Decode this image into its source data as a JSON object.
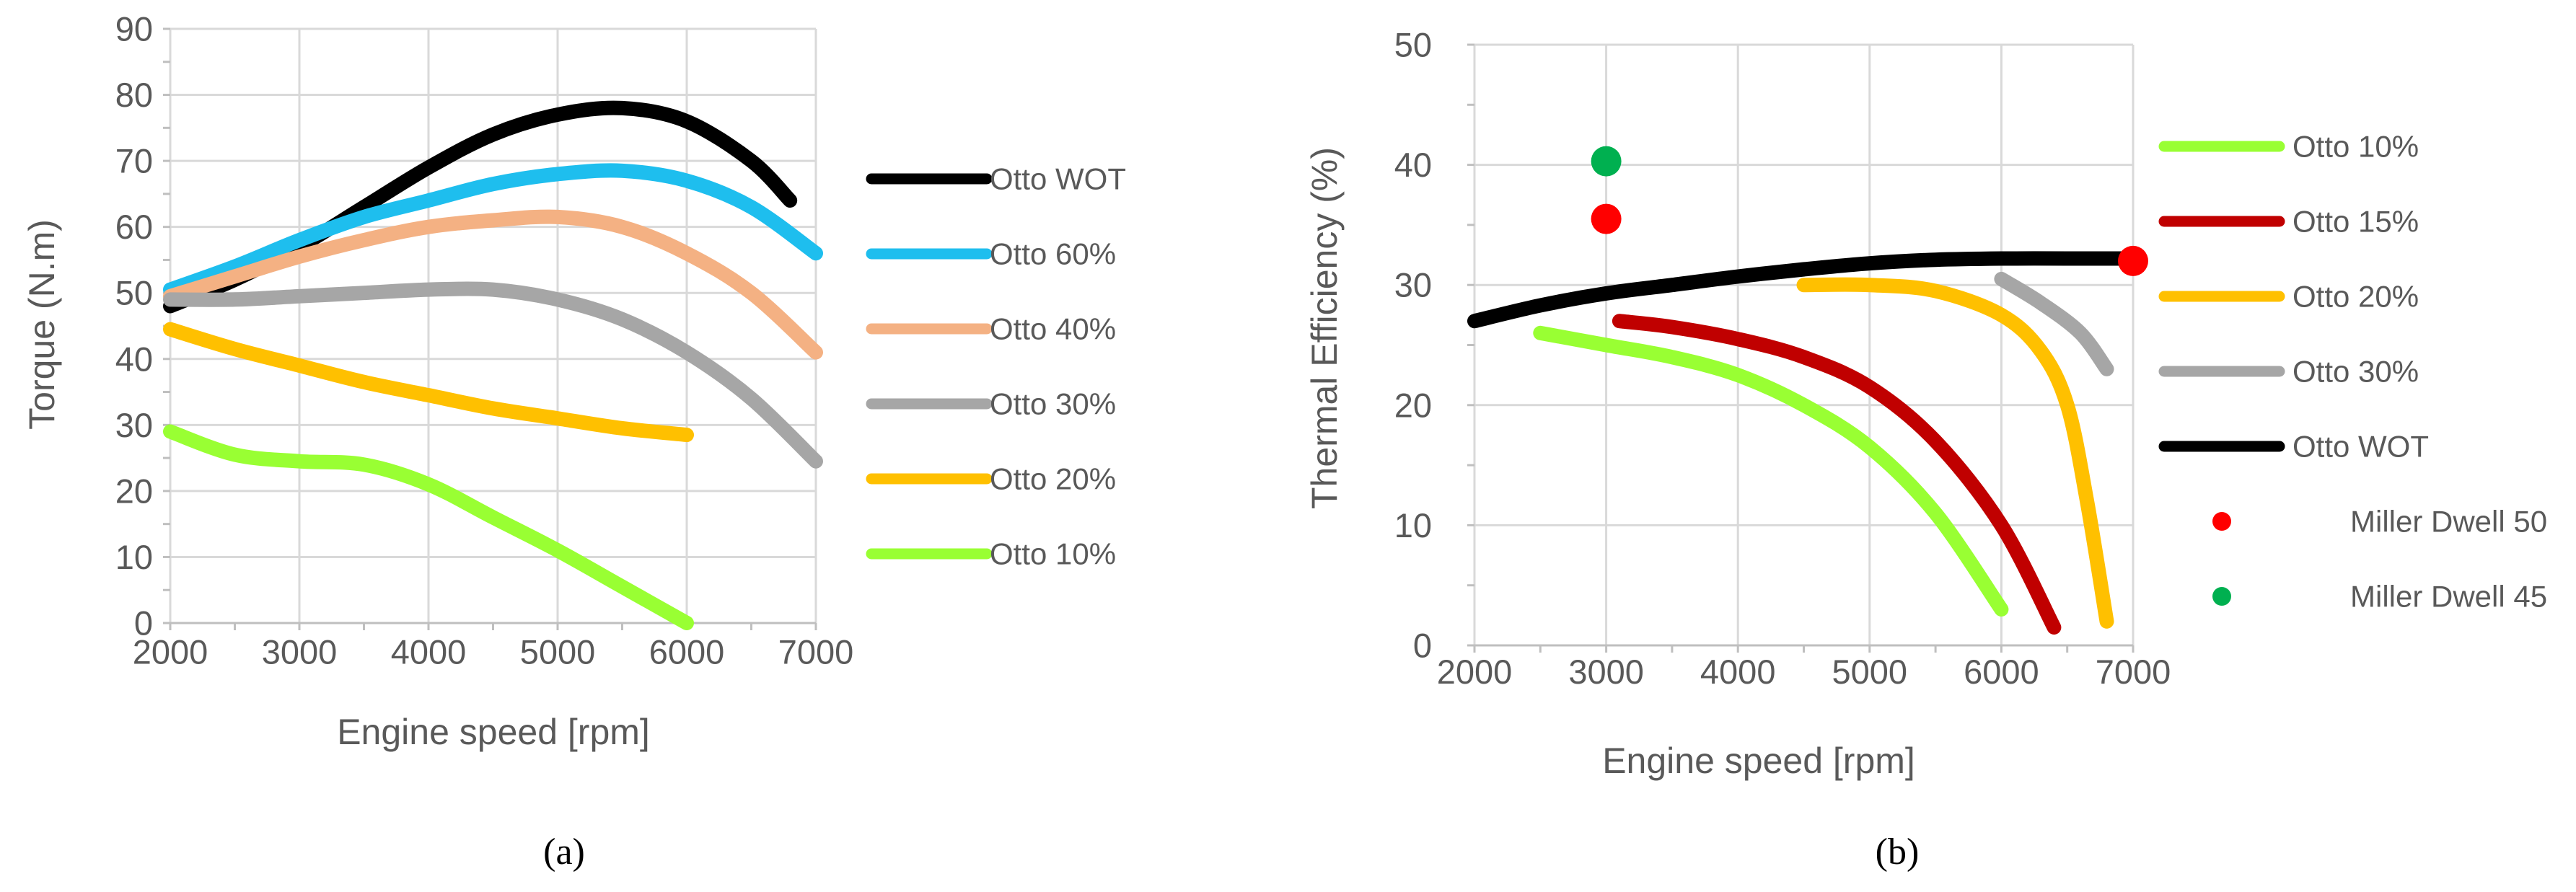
{
  "charts": [
    {
      "id": "a",
      "panel_label": "(a)",
      "xlabel": "Engine speed [rpm]",
      "ylabel": "Torque (N.m)",
      "xlim": [
        2000,
        7000
      ],
      "ylim": [
        0,
        90
      ],
      "xticks": [
        2000,
        3000,
        4000,
        5000,
        6000,
        7000
      ],
      "yticks": [
        0,
        10,
        20,
        30,
        40,
        50,
        60,
        70,
        80,
        90
      ]
    },
    {
      "id": "b",
      "panel_label": "(b)",
      "xlabel": "Engine speed [rpm]",
      "ylabel": "Thermal Efficiency (%)",
      "xlim": [
        2000,
        7000
      ],
      "ylim": [
        0,
        50
      ],
      "xticks": [
        2000,
        3000,
        4000,
        5000,
        6000,
        7000
      ],
      "yticks": [
        0,
        10,
        20,
        30,
        40,
        50
      ]
    }
  ],
  "chart_data": [
    {
      "type": "line",
      "title": "",
      "xlabel": "Engine speed [rpm]",
      "ylabel": "Torque (N.m)",
      "xlim": [
        2000,
        7000
      ],
      "ylim": [
        0,
        90
      ],
      "grid": true,
      "legend_position": "right",
      "series": [
        {
          "name": "Otto WOT",
          "color": "#000000",
          "x": [
            2000,
            2500,
            3000,
            3500,
            4000,
            4500,
            5000,
            5500,
            6000,
            6500,
            6800
          ],
          "y": [
            48,
            52,
            57,
            63,
            69,
            74,
            77,
            78,
            76,
            70,
            64
          ]
        },
        {
          "name": "Otto 60%",
          "color": "#1ebeee",
          "x": [
            2000,
            2500,
            3000,
            3500,
            4000,
            4500,
            5000,
            5500,
            6000,
            6500,
            7000
          ],
          "y": [
            50.5,
            54,
            58,
            61.5,
            64,
            66.5,
            68,
            68.5,
            67,
            63,
            56
          ]
        },
        {
          "name": "Otto 40%",
          "color": "#f4b183",
          "x": [
            2000,
            2500,
            3000,
            3500,
            4000,
            4500,
            5000,
            5500,
            6000,
            6500,
            7000
          ],
          "y": [
            49.5,
            52.5,
            55.5,
            58,
            60,
            61,
            61.5,
            60,
            56,
            50,
            41
          ]
        },
        {
          "name": "Otto 30%",
          "color": "#a6a6a6",
          "x": [
            2000,
            2500,
            3000,
            3500,
            4000,
            4500,
            5000,
            5500,
            6000,
            6500,
            7000
          ],
          "y": [
            49,
            49,
            49.5,
            50,
            50.5,
            50.5,
            49,
            46,
            41,
            34,
            24.5
          ]
        },
        {
          "name": "Otto 20%",
          "color": "#ffc000",
          "x": [
            2000,
            2500,
            3000,
            3500,
            4000,
            4500,
            5000,
            5500,
            6000
          ],
          "y": [
            44.5,
            41.5,
            39,
            36.5,
            34.5,
            32.5,
            31,
            29.5,
            28.5
          ]
        },
        {
          "name": "Otto 10%",
          "color": "#99ff33",
          "x": [
            2000,
            2500,
            3000,
            3500,
            4000,
            4500,
            5000,
            5500,
            6000
          ],
          "y": [
            29,
            25.5,
            24.5,
            24,
            21,
            16,
            11,
            5.5,
            0
          ]
        }
      ]
    },
    {
      "type": "line",
      "title": "",
      "xlabel": "Engine speed [rpm]",
      "ylabel": "Thermal Efficiency (%)",
      "xlim": [
        2000,
        7000
      ],
      "ylim": [
        0,
        50
      ],
      "grid": true,
      "legend_position": "right",
      "series": [
        {
          "name": "Otto 10%",
          "color": "#99ff33",
          "x": [
            2500,
            3000,
            3500,
            4000,
            4500,
            5000,
            5500,
            6000
          ],
          "y": [
            26,
            25,
            24,
            22.5,
            20,
            16.5,
            11,
            3
          ]
        },
        {
          "name": "Otto 15%",
          "color": "#c00000",
          "x": [
            3100,
            3500,
            4000,
            4500,
            5000,
            5500,
            6000,
            6400
          ],
          "y": [
            27,
            26.5,
            25.5,
            24,
            21.5,
            17,
            10,
            1.5
          ]
        },
        {
          "name": "Otto 20%",
          "color": "#ffc000",
          "x": [
            4500,
            5000,
            5500,
            6000,
            6300,
            6500,
            6650,
            6800
          ],
          "y": [
            30,
            30,
            29.5,
            27.5,
            24.5,
            20,
            12,
            2
          ]
        },
        {
          "name": "Otto 30%",
          "color": "#a6a6a6",
          "x": [
            6000,
            6300,
            6600,
            6800
          ],
          "y": [
            30.5,
            28.5,
            26,
            23
          ]
        },
        {
          "name": "Otto WOT",
          "color": "#000000",
          "x": [
            2000,
            2500,
            3000,
            3500,
            4000,
            4500,
            5000,
            5500,
            6000,
            6500,
            7000
          ],
          "y": [
            27,
            28.3,
            29.3,
            30,
            30.7,
            31.3,
            31.8,
            32.1,
            32.2,
            32.2,
            32.2
          ]
        }
      ],
      "points": [
        {
          "name": "Miller Dwell 50",
          "color": "#ff0000",
          "x": [
            3000,
            7000
          ],
          "y": [
            35.5,
            32
          ]
        },
        {
          "name": "Miller Dwell 45",
          "color": "#00b050",
          "x": [
            3000
          ],
          "y": [
            40.3
          ]
        }
      ]
    }
  ]
}
